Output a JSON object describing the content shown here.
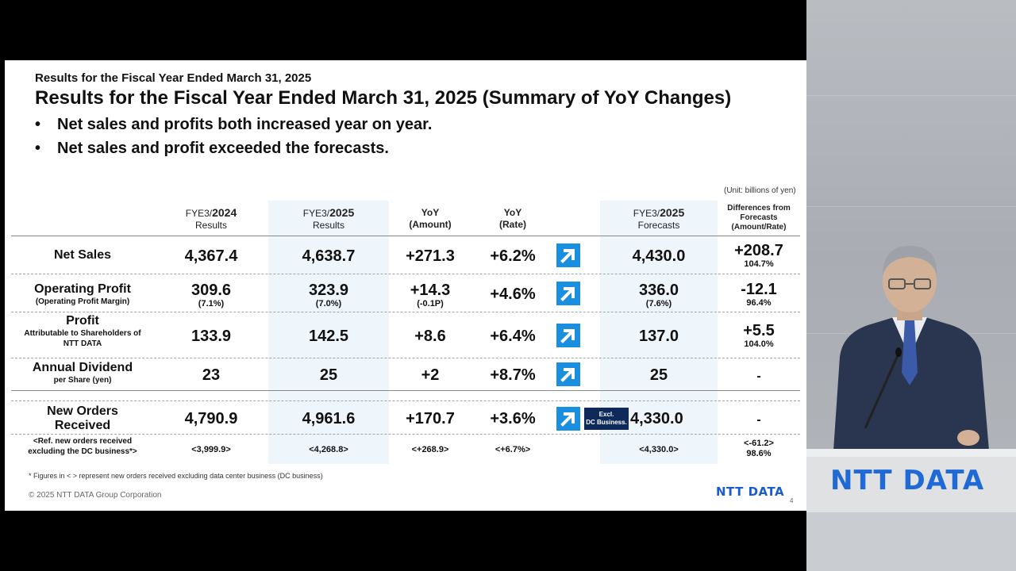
{
  "slide": {
    "header_small": "Results for the Fiscal Year Ended March 31, 2025",
    "title": "Results for the Fiscal Year Ended March 31, 2025 (Summary of YoY Changes)",
    "bullets": [
      "Net sales and profits both increased year on year.",
      "Net sales and profit exceeded the forecasts."
    ],
    "bullet_symbol": "•",
    "unit_note": "(Unit: billions of yen)",
    "columns": {
      "fy2024": {
        "prefix": "FYE3/",
        "year": "2024",
        "label": "Results"
      },
      "fy2025": {
        "prefix": "FYE3/",
        "year": "2025",
        "label": "Results"
      },
      "yoy_amount": {
        "line1": "YoY",
        "line2": "(Amount)"
      },
      "yoy_rate": {
        "line1": "YoY",
        "line2": "(Rate)"
      },
      "forecast": {
        "prefix": "FYE3/",
        "year": "2025",
        "label": "Forecasts"
      },
      "diff": {
        "line1": "Differences from",
        "line2": "Forecasts",
        "line3": "(Amount/Rate)"
      }
    },
    "rows": [
      {
        "label": "Net Sales",
        "sublabel": "",
        "fy2024": "4,367.4",
        "fy2024_sub": "",
        "fy2025": "4,638.7",
        "fy2025_sub": "",
        "yoy_amount": "+271.3",
        "yoy_amount_sub": "",
        "yoy_rate": "+6.2%",
        "forecast": "4,430.0",
        "forecast_sub": "",
        "diff": "+208.7",
        "diff_sub": "104.7%"
      },
      {
        "label": "Operating Profit",
        "sublabel": "(Operating Profit Margin)",
        "fy2024": "309.6",
        "fy2024_sub": "(7.1%)",
        "fy2025": "323.9",
        "fy2025_sub": "(7.0%)",
        "yoy_amount": "+14.3",
        "yoy_amount_sub": "(-0.1P)",
        "yoy_rate": "+4.6%",
        "forecast": "336.0",
        "forecast_sub": "(7.6%)",
        "diff": "-12.1",
        "diff_sub": "96.4%"
      },
      {
        "label": "Profit",
        "sublabel": "Attributable to Shareholders of NTT DATA",
        "fy2024": "133.9",
        "fy2024_sub": "",
        "fy2025": "142.5",
        "fy2025_sub": "",
        "yoy_amount": "+8.6",
        "yoy_amount_sub": "",
        "yoy_rate": "+6.4%",
        "forecast": "137.0",
        "forecast_sub": "",
        "diff": "+5.5",
        "diff_sub": "104.0%"
      },
      {
        "label": "Annual Dividend",
        "sublabel": "per Share (yen)",
        "fy2024": "23",
        "fy2024_sub": "",
        "fy2025": "25",
        "fy2025_sub": "",
        "yoy_amount": "+2",
        "yoy_amount_sub": "",
        "yoy_rate": "+8.7%",
        "forecast": "25",
        "forecast_sub": "",
        "diff": "-",
        "diff_sub": ""
      },
      {
        "label": "New Orders Received",
        "sublabel": "",
        "fy2024": "4,790.9",
        "fy2024_sub": "",
        "fy2025": "4,961.6",
        "fy2025_sub": "",
        "yoy_amount": "+170.7",
        "yoy_amount_sub": "",
        "yoy_rate": "+3.6%",
        "forecast": "4,330.0",
        "forecast_sub": "",
        "diff": "-",
        "diff_sub": ""
      }
    ],
    "ref_row": {
      "label_line1": "<Ref. new orders received",
      "label_line2": "excluding the DC business*>",
      "fy2024": "<3,999.9>",
      "fy2025": "<4,268.8>",
      "yoy_amount": "<+268.9>",
      "yoy_rate": "<+6.7%>",
      "forecast": "<4,330.0>",
      "diff": "<-61.2>",
      "diff_sub": "98.6%"
    },
    "excl_badge": {
      "line1": "Excl.",
      "line2": "DC Business."
    },
    "footnote": "*  Figures in < > represent new orders received excluding data center business (DC business)",
    "copyright": "© 2025 NTT DATA Group Corporation",
    "logo": "NTT DATA",
    "page_number": "4",
    "accent_color": "#1a8fe0",
    "highlight_color": "#eef5fb"
  },
  "room": {
    "podium_logo": "NTT DATA"
  }
}
